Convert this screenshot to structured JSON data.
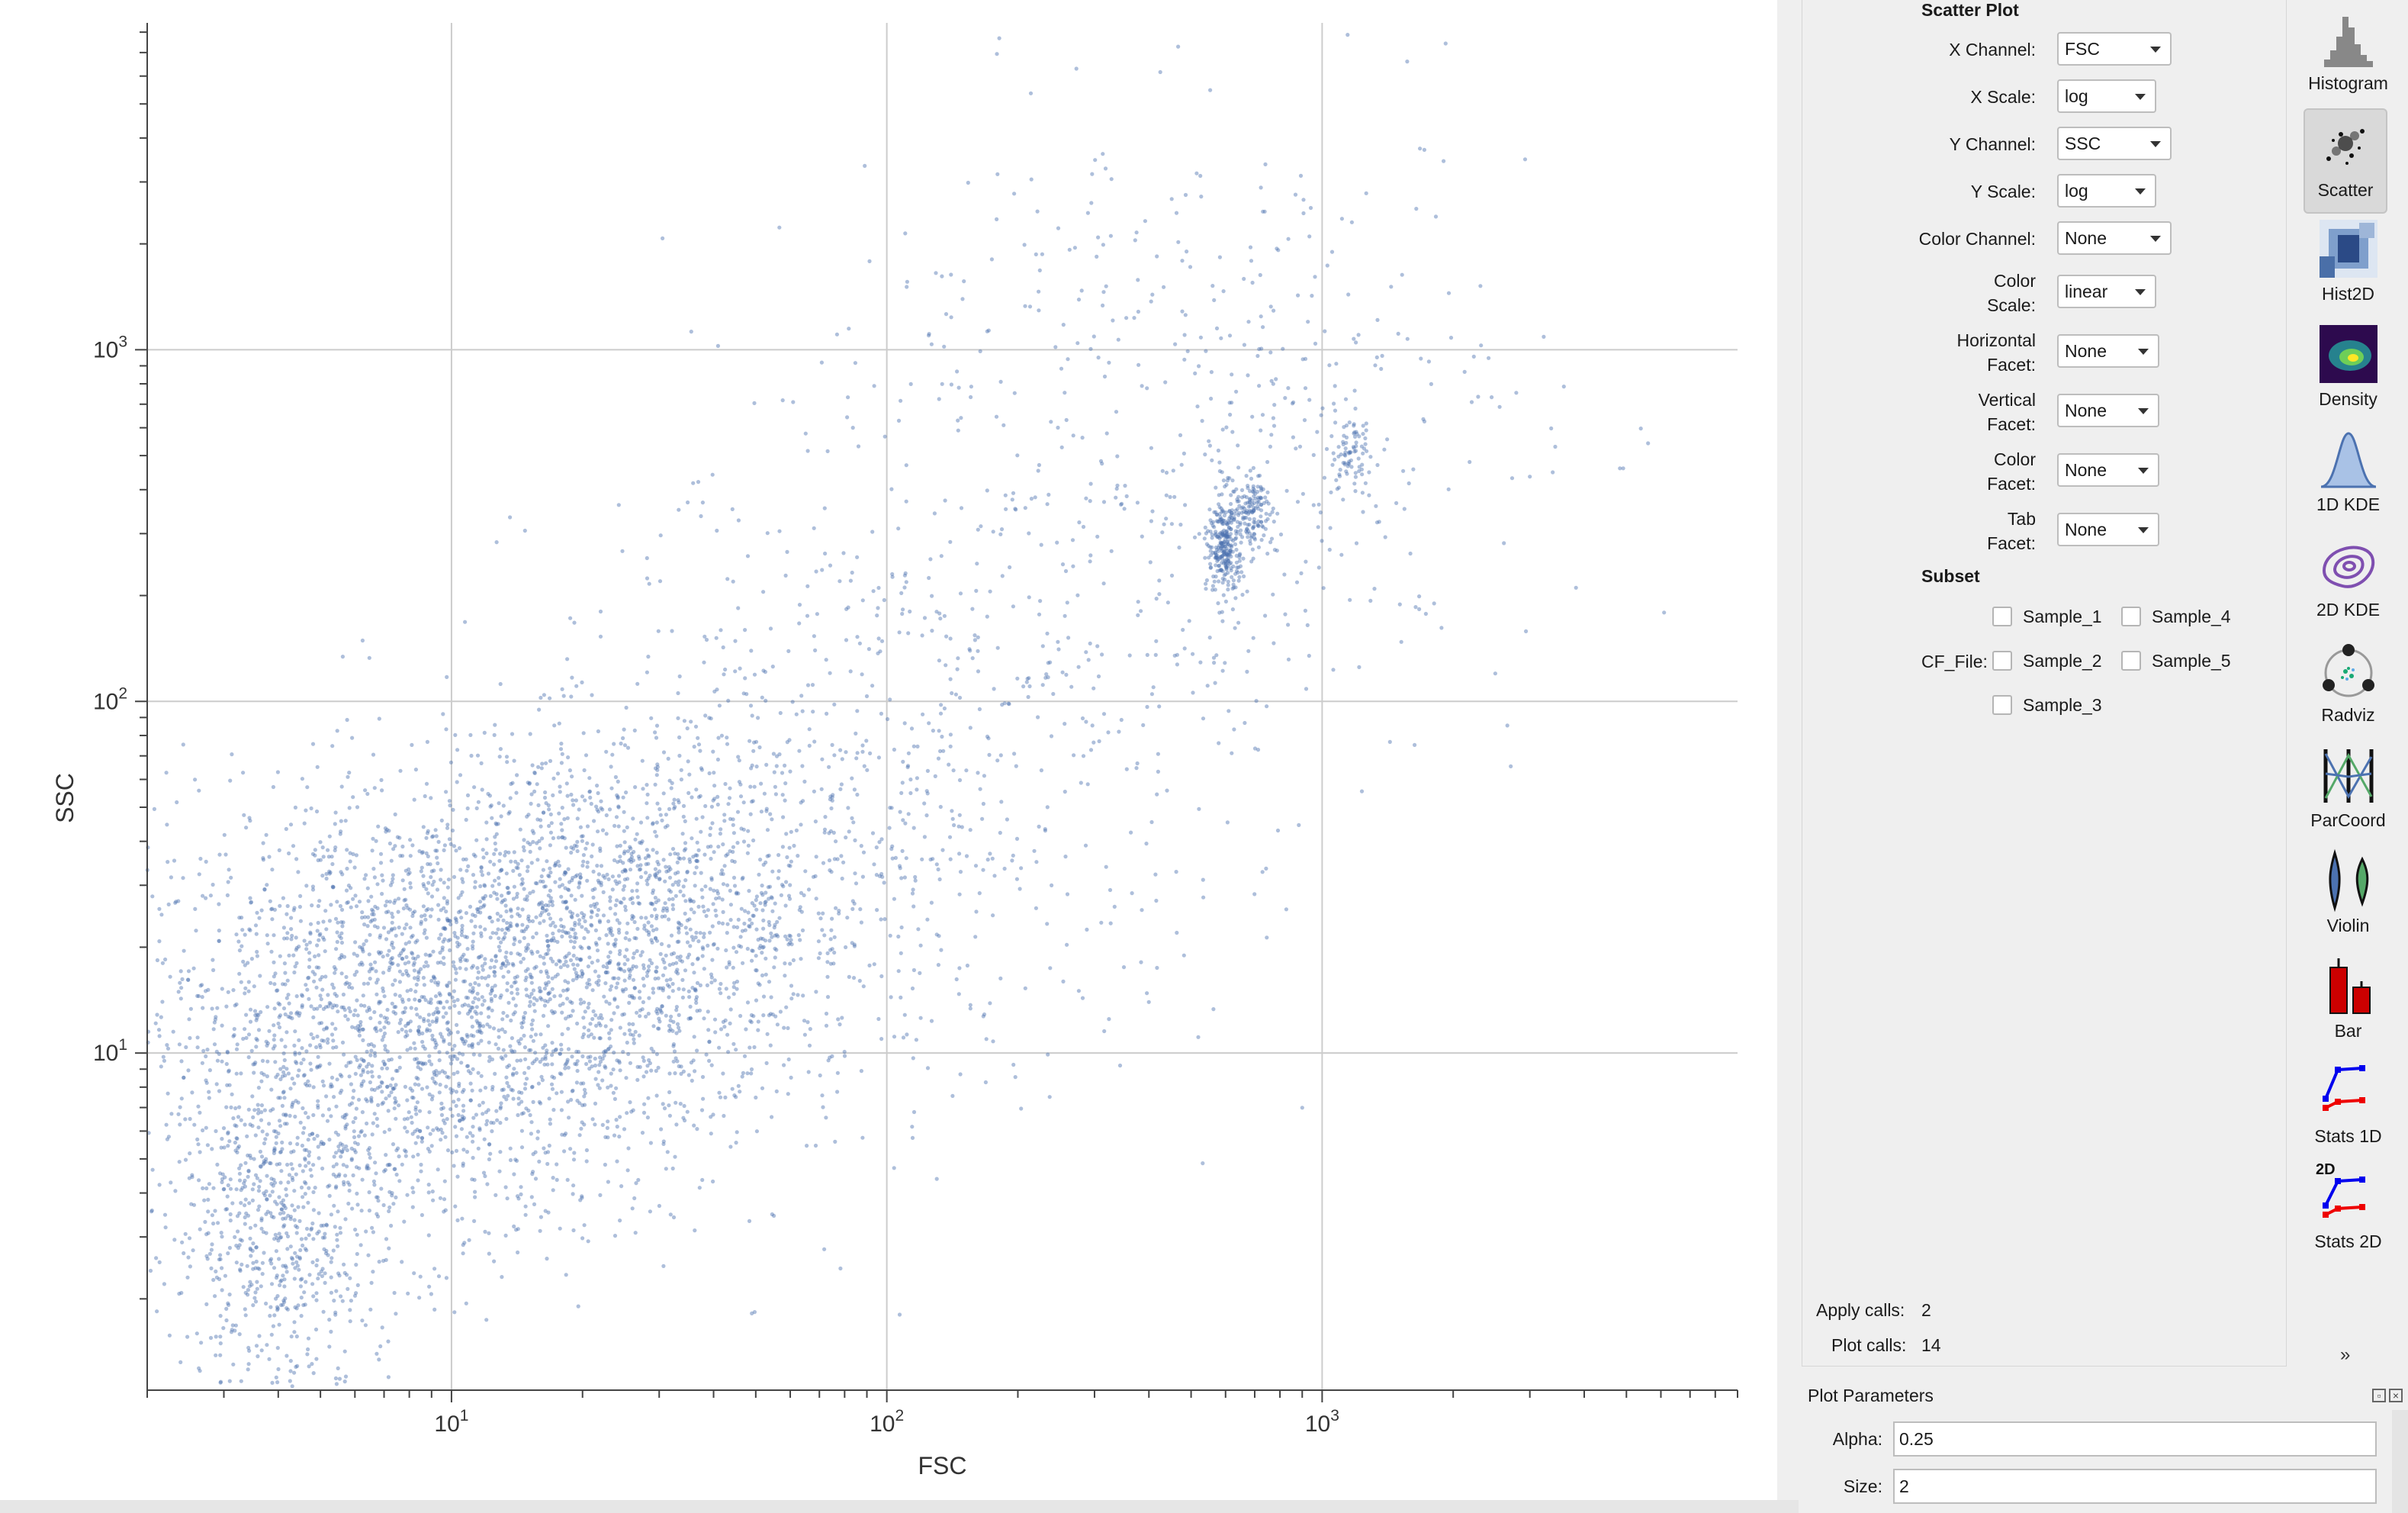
{
  "plot": {
    "chart_data": {
      "type": "scatter",
      "xlabel": "FSC",
      "ylabel": "SSC",
      "x_scale": "log",
      "y_scale": "log",
      "x_range": [
        2,
        9000
      ],
      "y_range": [
        1.1,
        8500
      ],
      "x_ticks": [
        {
          "base": "10",
          "exp": "1",
          "value": 10
        },
        {
          "base": "10",
          "exp": "2",
          "value": 100
        },
        {
          "base": "10",
          "exp": "3",
          "value": 1000
        }
      ],
      "y_ticks": [
        {
          "base": "10",
          "exp": "1",
          "value": 10
        },
        {
          "base": "10",
          "exp": "2",
          "value": 100
        },
        {
          "base": "10",
          "exp": "3",
          "value": 1000
        }
      ],
      "grid": true,
      "point_color": "#4c72b0",
      "alpha": 0.25,
      "clusters": [
        {
          "x_center": 8,
          "y_center": 12,
          "x_log_sd": 0.35,
          "y_log_sd": 0.32,
          "count": 2400
        },
        {
          "x_center": 25,
          "y_center": 25,
          "x_log_sd": 0.28,
          "y_log_sd": 0.25,
          "count": 1400
        },
        {
          "x_center": 4,
          "y_center": 3,
          "x_log_sd": 0.12,
          "y_log_sd": 0.25,
          "count": 600
        },
        {
          "x_center": 100,
          "y_center": 60,
          "x_log_sd": 0.4,
          "y_log_sd": 0.45,
          "count": 700
        },
        {
          "x_center": 500,
          "y_center": 600,
          "x_log_sd": 0.4,
          "y_log_sd": 0.45,
          "count": 500
        },
        {
          "x_center": 600,
          "y_center": 280,
          "x_log_sd": 0.02,
          "y_log_sd": 0.08,
          "count": 300
        },
        {
          "x_center": 700,
          "y_center": 350,
          "x_log_sd": 0.02,
          "y_log_sd": 0.05,
          "count": 120
        },
        {
          "x_center": 1150,
          "y_center": 500,
          "x_log_sd": 0.03,
          "y_log_sd": 0.05,
          "count": 80
        }
      ]
    }
  },
  "options": {
    "section_title": "Scatter Plot",
    "fields": [
      {
        "label": "X Channel:",
        "value": "FSC"
      },
      {
        "label": "X Scale:",
        "value": "log"
      },
      {
        "label": "Y Channel:",
        "value": "SSC"
      },
      {
        "label": "Y Scale:",
        "value": "log"
      },
      {
        "label": "Color Channel:",
        "value": "None"
      },
      {
        "label_line1": "Color",
        "label_line2": "Scale:",
        "value": "linear"
      },
      {
        "label_line1": "Horizontal",
        "label_line2": "Facet:",
        "value": "None"
      },
      {
        "label_line1": "Vertical",
        "label_line2": "Facet:",
        "value": "None"
      },
      {
        "label_line1": "Color",
        "label_line2": "Facet:",
        "value": "None"
      },
      {
        "label_line1": "Tab",
        "label_line2": "Facet:",
        "value": "None"
      }
    ],
    "subset_title": "Subset",
    "subset_label": "CF_File:",
    "samples": [
      "Sample_1",
      "Sample_4",
      "Sample_2",
      "Sample_5",
      "Sample_3"
    ],
    "apply_calls_label": "Apply calls:",
    "apply_calls_value": "2",
    "plot_calls_label": "Plot calls:",
    "plot_calls_value": "14"
  },
  "plot_params": {
    "title": "Plot Parameters",
    "alpha_label": "Alpha:",
    "alpha_value": "0.25",
    "size_label": "Size:",
    "size_value": "2"
  },
  "toolbar": {
    "tools": [
      {
        "label": "Histogram",
        "icon": "histogram-icon"
      },
      {
        "label": "Scatter",
        "icon": "scatter-icon",
        "active": true
      },
      {
        "label": "Hist2D",
        "icon": "hist2d-icon"
      },
      {
        "label": "Density",
        "icon": "density-icon"
      },
      {
        "label": "1D KDE",
        "icon": "kde1d-icon"
      },
      {
        "label": "2D KDE",
        "icon": "kde2d-icon"
      },
      {
        "label": "Radviz",
        "icon": "radviz-icon"
      },
      {
        "label": "ParCoord",
        "icon": "parcoord-icon"
      },
      {
        "label": "Violin",
        "icon": "violin-icon"
      },
      {
        "label": "Bar",
        "icon": "bar-icon"
      },
      {
        "label": "Stats 1D",
        "icon": "stats1d-icon"
      },
      {
        "label": "Stats 2D",
        "icon": "stats2d-icon",
        "badge": "2D"
      }
    ],
    "more": "»"
  }
}
